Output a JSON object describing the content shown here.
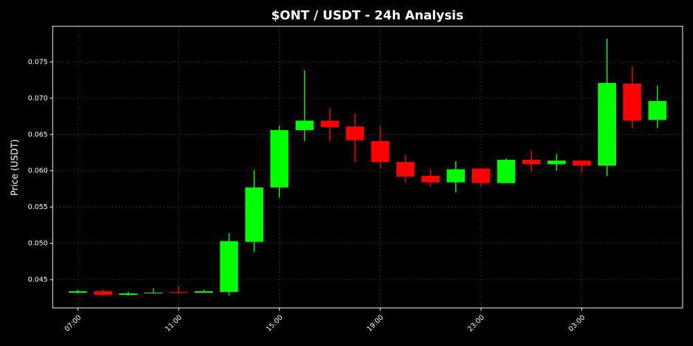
{
  "chart_data": {
    "type": "candlestick",
    "title": "$ONT / USDT - 24h Analysis",
    "y_label": "Price (USDT)",
    "categories": [
      "07:00",
      null,
      null,
      null,
      "11:00",
      null,
      null,
      null,
      "15:00",
      null,
      null,
      null,
      "19:00",
      null,
      null,
      null,
      "23:00",
      null,
      null,
      null,
      "03:00",
      null,
      null,
      null
    ],
    "open": [
      0.0432,
      0.0434,
      0.0429,
      0.0431,
      0.0433,
      0.0432,
      0.0433,
      0.0502,
      0.0577,
      0.0656,
      0.0669,
      0.0661,
      0.0641,
      0.0612,
      0.0593,
      0.0584,
      0.0603,
      0.0583,
      0.0615,
      0.0609,
      0.0614,
      0.0607,
      0.072,
      0.067
    ],
    "high": [
      0.0436,
      0.0436,
      0.0433,
      0.0438,
      0.0441,
      0.0436,
      0.0514,
      0.0601,
      0.0662,
      0.0738,
      0.0686,
      0.0679,
      0.0662,
      0.0622,
      0.0603,
      0.0613,
      0.0604,
      0.0617,
      0.0628,
      0.0623,
      0.0614,
      0.0782,
      0.0744,
      0.0717
    ],
    "low": [
      0.0431,
      0.0428,
      0.0428,
      0.0431,
      0.0431,
      0.0432,
      0.0428,
      0.0488,
      0.0563,
      0.0641,
      0.0641,
      0.0612,
      0.0603,
      0.0584,
      0.0578,
      0.057,
      0.0578,
      0.0583,
      0.0599,
      0.06,
      0.0597,
      0.0593,
      0.0659,
      0.0659
    ],
    "close": [
      0.0434,
      0.0429,
      0.0431,
      0.0432,
      0.0432,
      0.0434,
      0.0503,
      0.0577,
      0.0656,
      0.0669,
      0.066,
      0.0642,
      0.0612,
      0.0592,
      0.0584,
      0.0602,
      0.0583,
      0.0615,
      0.0609,
      0.0614,
      0.0607,
      0.0721,
      0.0669,
      0.0696
    ],
    "up_color": "#00ff00",
    "down_color": "#ff0000",
    "ylim": [
      0.0411,
      0.0799
    ],
    "yticks": [
      0.045,
      {
        "value": 0.05,
        "label": "0.050"
      },
      0.055,
      {
        "value": 0.06,
        "label": "0.060"
      },
      0.065,
      {
        "value": 0.07,
        "label": "0.070"
      },
      0.075
    ],
    "grid": true
  }
}
